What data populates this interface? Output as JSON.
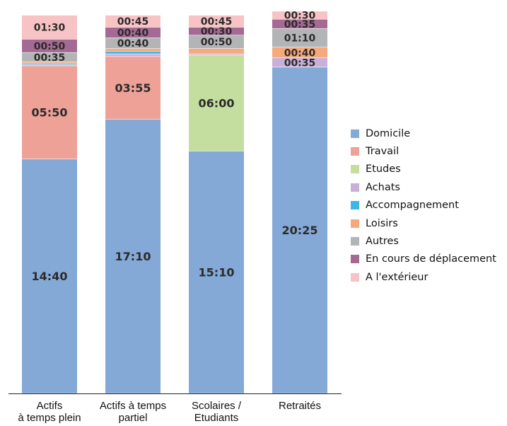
{
  "chart_data": {
    "type": "bar",
    "stacked": true,
    "categories": [
      "Actifs\nà temps plein",
      "Actifs à temps\npartiel",
      "Scolaires /\nEtudiants",
      "Retraités"
    ],
    "series": [
      {
        "name": "Domicile",
        "color": "#84a9d6",
        "values": [
          "14:40",
          "17:10",
          "15:10",
          "20:25"
        ]
      },
      {
        "name": "Travail",
        "color": "#eda197",
        "values": [
          "05:50",
          "03:55",
          "",
          ""
        ]
      },
      {
        "name": "Etudes",
        "color": "#c3de9e",
        "values": [
          "",
          "",
          "06:00",
          ""
        ]
      },
      {
        "name": "Achats",
        "color": "#c9b0d8",
        "values": [
          "",
          "",
          "",
          "00:35"
        ]
      },
      {
        "name": "Accompagnement",
        "color": "#3fb7e6",
        "values": [
          "",
          "",
          "",
          ""
        ]
      },
      {
        "name": "Loisirs",
        "color": "#f6aa7b",
        "values": [
          "",
          "",
          "",
          "00:40"
        ]
      },
      {
        "name": "Autres",
        "color": "#b3b4b6",
        "values": [
          "00:35",
          "00:40",
          "00:50",
          "01:10"
        ]
      },
      {
        "name": "En cours de déplacement",
        "color": "#a46a93",
        "values": [
          "00:50",
          "00:40",
          "00:30",
          "00:35"
        ]
      },
      {
        "name": "A l'extérieur",
        "color": "#f8c3c5",
        "values": [
          "01:30",
          "00:45",
          "00:45",
          "00:30"
        ]
      }
    ],
    "unlabeled_minutes": [
      [
        0,
        0,
        0,
        5,
        5,
        5,
        0,
        0,
        0
      ],
      [
        0,
        0,
        0,
        10,
        10,
        10,
        0,
        0,
        0
      ],
      [
        0,
        0,
        5,
        5,
        0,
        20,
        0,
        0,
        0
      ],
      [
        0,
        0,
        0,
        0,
        0,
        0,
        0,
        0,
        0
      ]
    ],
    "ylim": [
      0,
      24
    ],
    "y_unit": "hours",
    "legend_position": "right",
    "grid": false
  }
}
